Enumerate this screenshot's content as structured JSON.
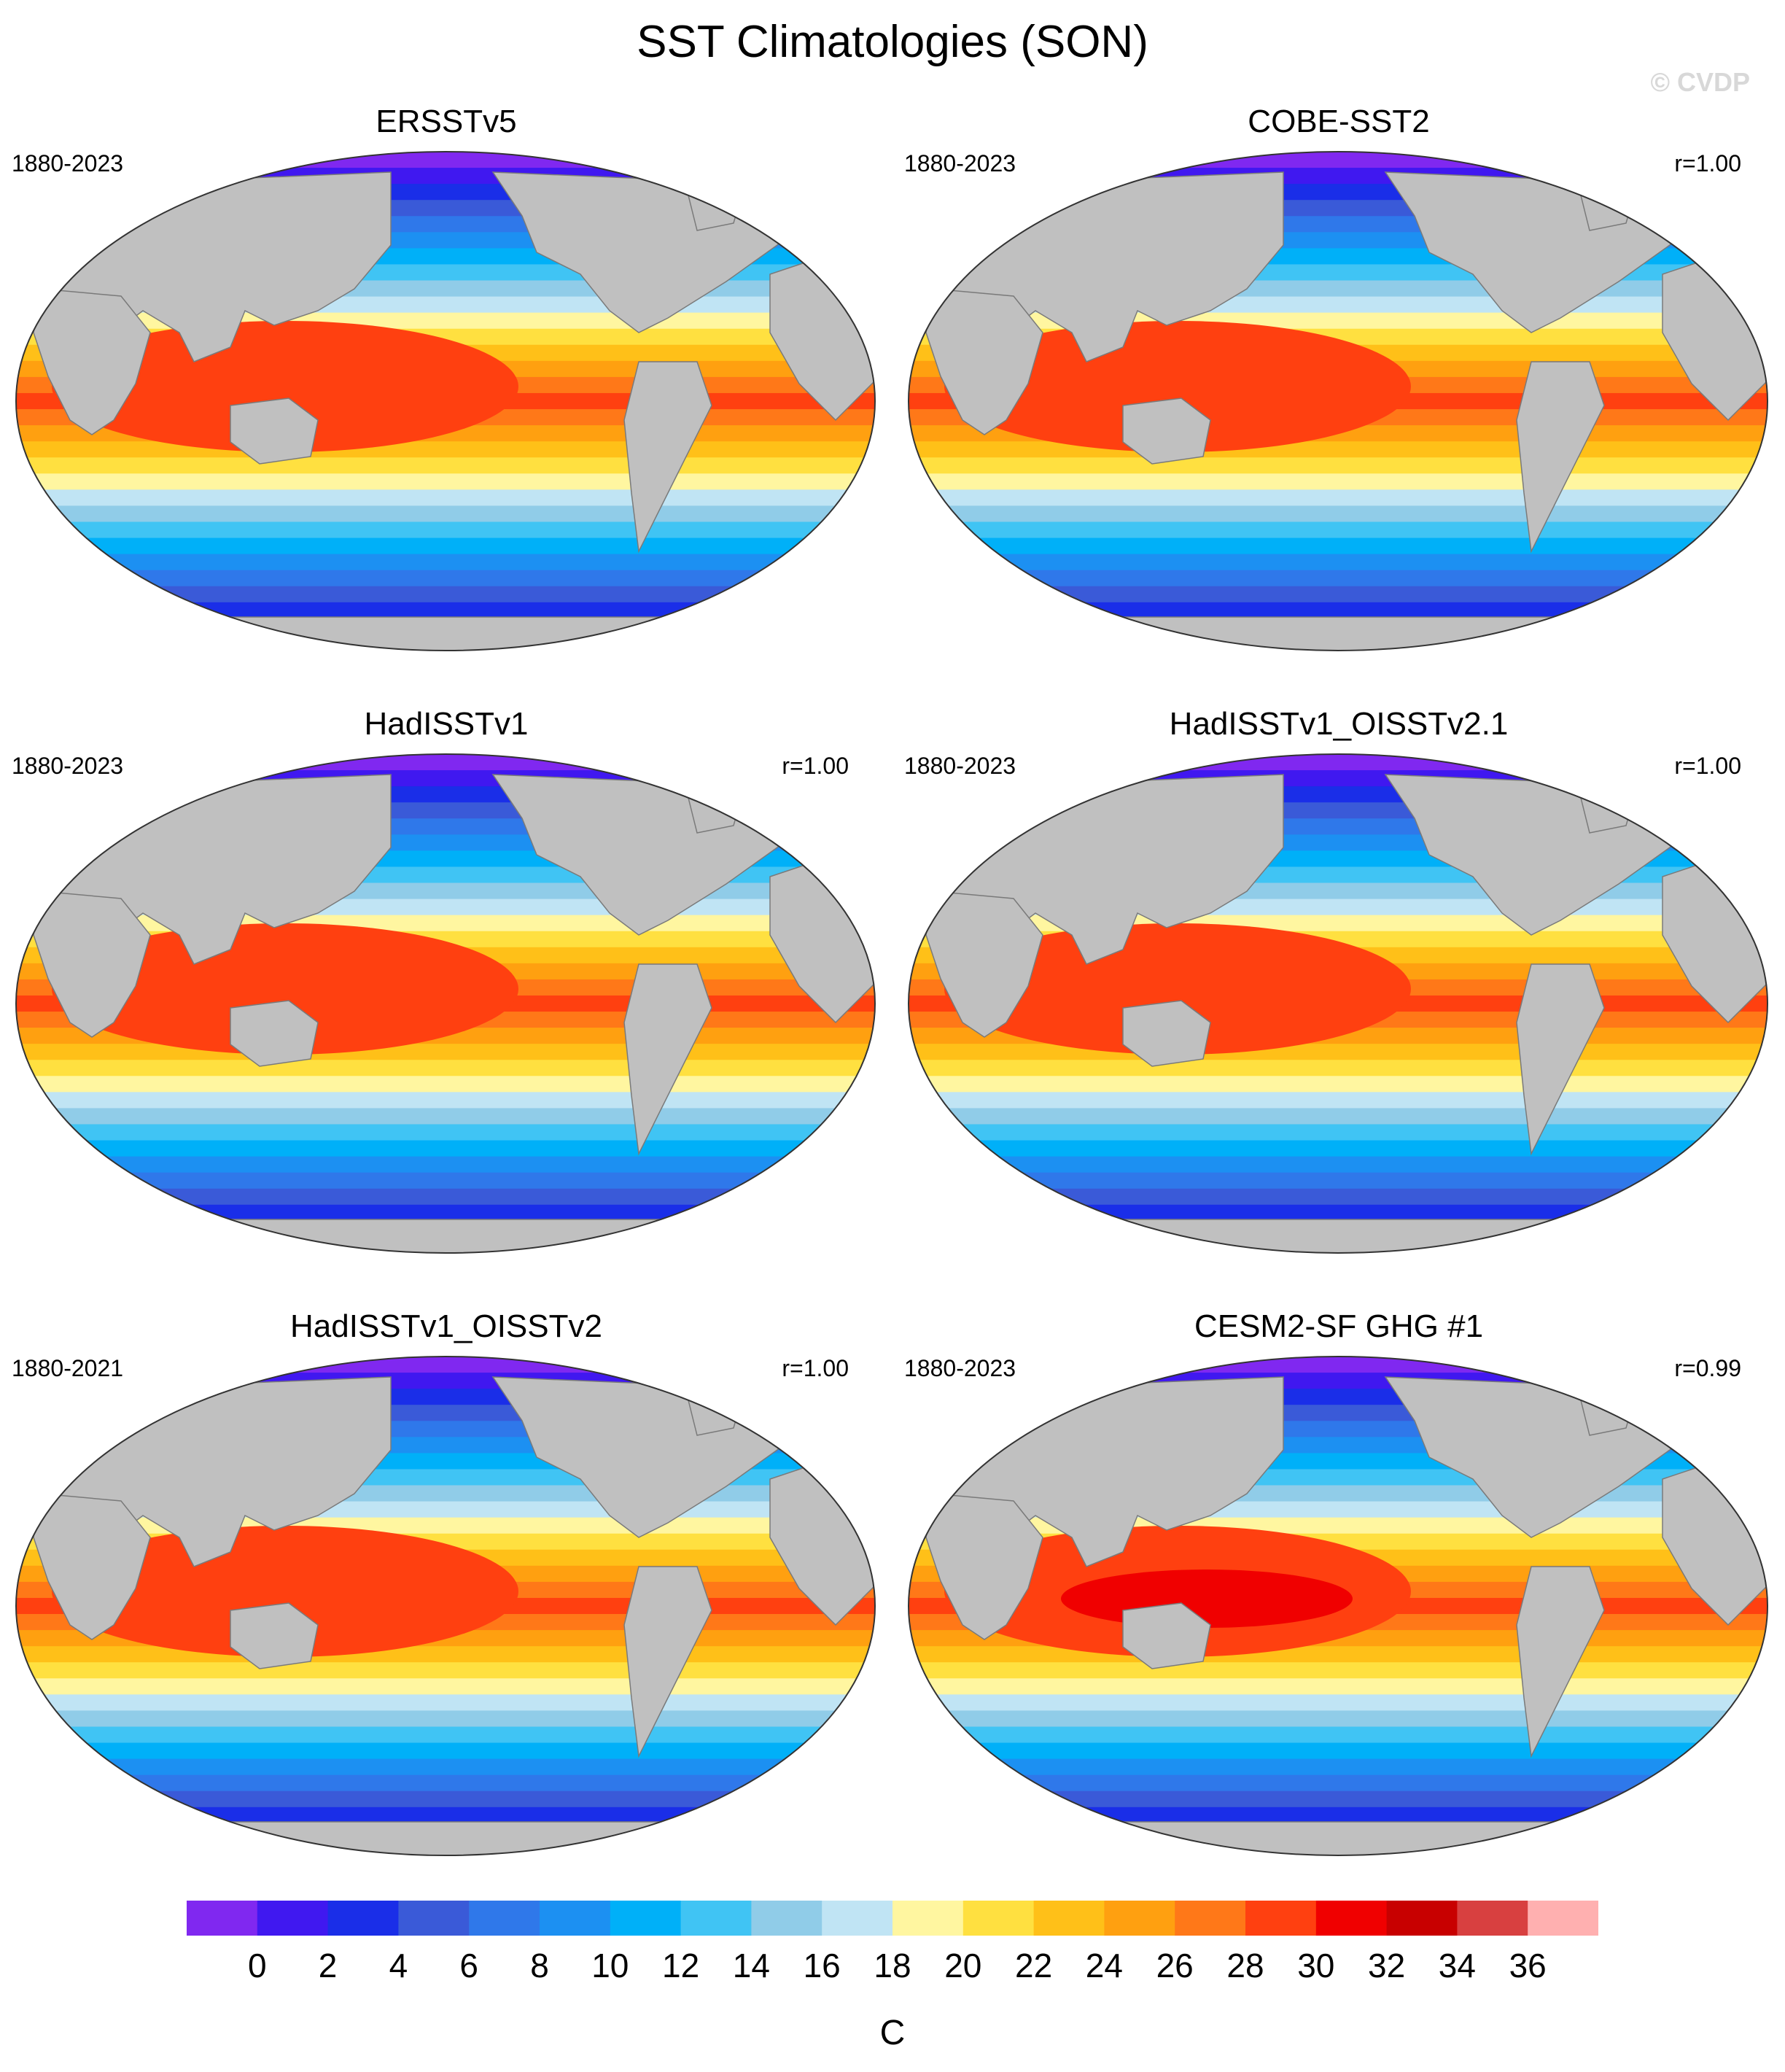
{
  "title": "SST Climatologies (SON)",
  "watermark": "© CVDP",
  "panels": [
    {
      "name": "ERSSTv5",
      "years": "1880-2023",
      "r": ""
    },
    {
      "name": "COBE-SST2",
      "years": "1880-2023",
      "r": "r=1.00"
    },
    {
      "name": "HadISSTv1",
      "years": "1880-2023",
      "r": "r=1.00"
    },
    {
      "name": "HadISSTv1_OISSTv2.1",
      "years": "1880-2023",
      "r": "r=1.00"
    },
    {
      "name": "HadISSTv1_OISSTv2",
      "years": "1880-2021",
      "r": "r=1.00"
    },
    {
      "name": "CESM2-SF GHG #1",
      "years": "1880-2023",
      "r": "r=0.99"
    }
  ],
  "colorbar": {
    "unit": "C",
    "labels": [
      "0",
      "2",
      "4",
      "6",
      "8",
      "10",
      "12",
      "14",
      "16",
      "18",
      "20",
      "22",
      "24",
      "26",
      "28",
      "30",
      "32",
      "34",
      "36"
    ],
    "colors": [
      "#8028f0",
      "#4018f0",
      "#1a2ee8",
      "#3a5ad8",
      "#2f78ea",
      "#1c90f2",
      "#00b0f8",
      "#40c4f4",
      "#90cce8",
      "#c0e4f4",
      "#fff6a0",
      "#ffe040",
      "#ffc018",
      "#ffa010",
      "#ff7818",
      "#ff4010",
      "#f00000",
      "#c80000",
      "#d84040",
      "#ffb0b0"
    ]
  }
}
